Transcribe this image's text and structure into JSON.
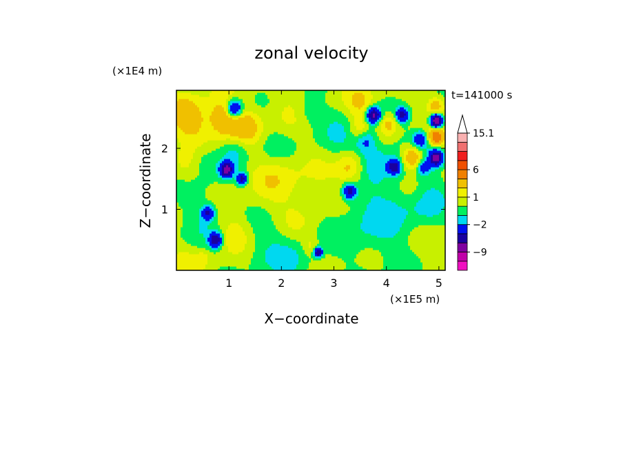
{
  "chart_data": {
    "type": "heatmap",
    "title": "zonal velocity",
    "xlabel": "X−coordinate",
    "ylabel": "Z−coordinate",
    "x_unit": "(×1E5 m)",
    "y_unit": "(×1E4 m)",
    "time_label": "t=141000 s",
    "xlim": [
      0,
      5.12
    ],
    "ylim": [
      0,
      2.95
    ],
    "x_ticks": [
      1,
      2,
      3,
      4,
      5
    ],
    "x_tick_labels": [
      "1",
      "2",
      "3",
      "4",
      "5"
    ],
    "y_ticks": [
      1,
      2
    ],
    "y_tick_labels": [
      "1",
      "2"
    ],
    "colorbar": {
      "levels": [
        -15,
        -12,
        -9,
        -6,
        -4,
        -2,
        -1,
        0,
        1,
        2,
        4,
        6,
        9,
        12,
        15.1
      ],
      "colors": [
        "#f010c0",
        "#c000a8",
        "#8000a0",
        "#1a00a0",
        "#0010f0",
        "#00d8f0",
        "#00f060",
        "#c8f000",
        "#f0f000",
        "#f0c000",
        "#f08000",
        "#f05000",
        "#f01e1e",
        "#f07070",
        "#f8b0b0"
      ],
      "extend_color": "#ffffff",
      "labels": [
        {
          "value": 15.1,
          "text": "15.1"
        },
        {
          "value": 6,
          "text": "6"
        },
        {
          "value": 1,
          "text": "1"
        },
        {
          "value": -2,
          "text": "−2"
        },
        {
          "value": -9,
          "text": "−9"
        }
      ]
    },
    "field": {
      "background": 0.5,
      "blobs": [
        {
          "x": 4.1,
          "z": 1.0,
          "r": 1.2,
          "v": -1.4
        },
        {
          "x": 3.4,
          "z": 0.8,
          "r": 0.6,
          "v": -0.6
        },
        {
          "x": 2.3,
          "z": 0.2,
          "r": 0.5,
          "v": -1.3
        },
        {
          "x": 1.6,
          "z": 0.35,
          "r": 0.5,
          "v": -1.0
        },
        {
          "x": 0.6,
          "z": 1.1,
          "r": 0.5,
          "v": -0.8
        },
        {
          "x": 4.6,
          "z": 1.2,
          "r": 0.6,
          "v": -0.6
        },
        {
          "x": 0.2,
          "z": 0.6,
          "r": 0.5,
          "v": -0.6
        },
        {
          "x": 3.0,
          "z": 2.1,
          "r": 0.5,
          "v": -1.1
        },
        {
          "x": 0.5,
          "z": 2.35,
          "r": 0.35,
          "v": 1.2
        },
        {
          "x": 0.2,
          "z": 2.55,
          "r": 0.3,
          "v": 2.5
        },
        {
          "x": 1.0,
          "z": 2.4,
          "r": 0.3,
          "v": 2.6
        },
        {
          "x": 1.35,
          "z": 2.35,
          "r": 0.25,
          "v": 2.0
        },
        {
          "x": 1.1,
          "z": 2.0,
          "r": 0.28,
          "v": -1.8
        },
        {
          "x": 0.85,
          "z": 2.55,
          "r": 0.2,
          "v": 1.8
        },
        {
          "x": 1.1,
          "z": 2.65,
          "r": 0.15,
          "v": -6.0
        },
        {
          "x": 0.95,
          "z": 1.65,
          "r": 0.12,
          "v": -7.0
        },
        {
          "x": 1.25,
          "z": 1.5,
          "r": 0.1,
          "v": -5.0
        },
        {
          "x": 0.5,
          "z": 1.8,
          "r": 0.3,
          "v": -1.7
        },
        {
          "x": 0.25,
          "z": 1.7,
          "r": 0.3,
          "v": 1.0
        },
        {
          "x": 0.6,
          "z": 0.95,
          "r": 0.12,
          "v": -4.0
        },
        {
          "x": 0.75,
          "z": 0.5,
          "r": 0.12,
          "v": -6.0
        },
        {
          "x": 0.5,
          "z": 0.2,
          "r": 0.12,
          "v": 1.2
        },
        {
          "x": 1.1,
          "z": 0.6,
          "r": 0.3,
          "v": 1.2
        },
        {
          "x": 1.8,
          "z": 1.55,
          "r": 0.5,
          "v": 1.0
        },
        {
          "x": 1.8,
          "z": 2.05,
          "r": 0.35,
          "v": -1.3
        },
        {
          "x": 2.0,
          "z": 2.45,
          "r": 0.4,
          "v": 0.6
        },
        {
          "x": 2.7,
          "z": 1.45,
          "r": 0.5,
          "v": 1.0
        },
        {
          "x": 3.3,
          "z": 1.7,
          "r": 0.25,
          "v": 2.5
        },
        {
          "x": 3.3,
          "z": 1.3,
          "r": 0.12,
          "v": -5.0
        },
        {
          "x": 3.55,
          "z": 1.55,
          "r": 0.35,
          "v": 0.8
        },
        {
          "x": 3.8,
          "z": 1.8,
          "r": 0.28,
          "v": -1.8
        },
        {
          "x": 3.6,
          "z": 2.15,
          "r": 0.2,
          "v": -3.0
        },
        {
          "x": 3.75,
          "z": 2.55,
          "r": 0.13,
          "v": -7.0
        },
        {
          "x": 3.5,
          "z": 2.3,
          "r": 0.2,
          "v": 2.3
        },
        {
          "x": 4.05,
          "z": 2.4,
          "r": 0.18,
          "v": 2.5
        },
        {
          "x": 4.3,
          "z": 2.55,
          "r": 0.12,
          "v": -5.0
        },
        {
          "x": 4.15,
          "z": 1.7,
          "r": 0.12,
          "v": -5.0
        },
        {
          "x": 4.5,
          "z": 1.85,
          "r": 0.2,
          "v": 4.5
        },
        {
          "x": 4.65,
          "z": 2.15,
          "r": 0.15,
          "v": -4.0
        },
        {
          "x": 4.7,
          "z": 1.7,
          "r": 0.12,
          "v": -3.0
        },
        {
          "x": 4.95,
          "z": 2.45,
          "r": 0.12,
          "v": -9.0
        },
        {
          "x": 4.95,
          "z": 2.2,
          "r": 0.15,
          "v": 5.5
        },
        {
          "x": 4.95,
          "z": 1.85,
          "r": 0.14,
          "v": -7.0
        },
        {
          "x": 4.95,
          "z": 2.7,
          "r": 0.15,
          "v": 2.5
        },
        {
          "x": 4.5,
          "z": 1.4,
          "r": 0.25,
          "v": 1.0
        },
        {
          "x": 3.5,
          "z": 2.75,
          "r": 0.25,
          "v": 1.5
        },
        {
          "x": 2.5,
          "z": 2.6,
          "r": 0.25,
          "v": -1.3
        },
        {
          "x": 2.9,
          "z": 0.3,
          "r": 0.4,
          "v": 0.6
        },
        {
          "x": 2.7,
          "z": 0.3,
          "r": 0.08,
          "v": -6.0
        },
        {
          "x": 2.55,
          "z": 0.4,
          "r": 0.15,
          "v": 1.4
        },
        {
          "x": 4.8,
          "z": 0.5,
          "r": 0.6,
          "v": 0.8
        },
        {
          "x": 0.1,
          "z": 0.1,
          "r": 0.3,
          "v": 1.0
        },
        {
          "x": 4.8,
          "z": 0.9,
          "r": 0.3,
          "v": -0.5
        },
        {
          "x": 2.3,
          "z": 0.8,
          "r": 0.3,
          "v": 0.5
        }
      ]
    }
  }
}
